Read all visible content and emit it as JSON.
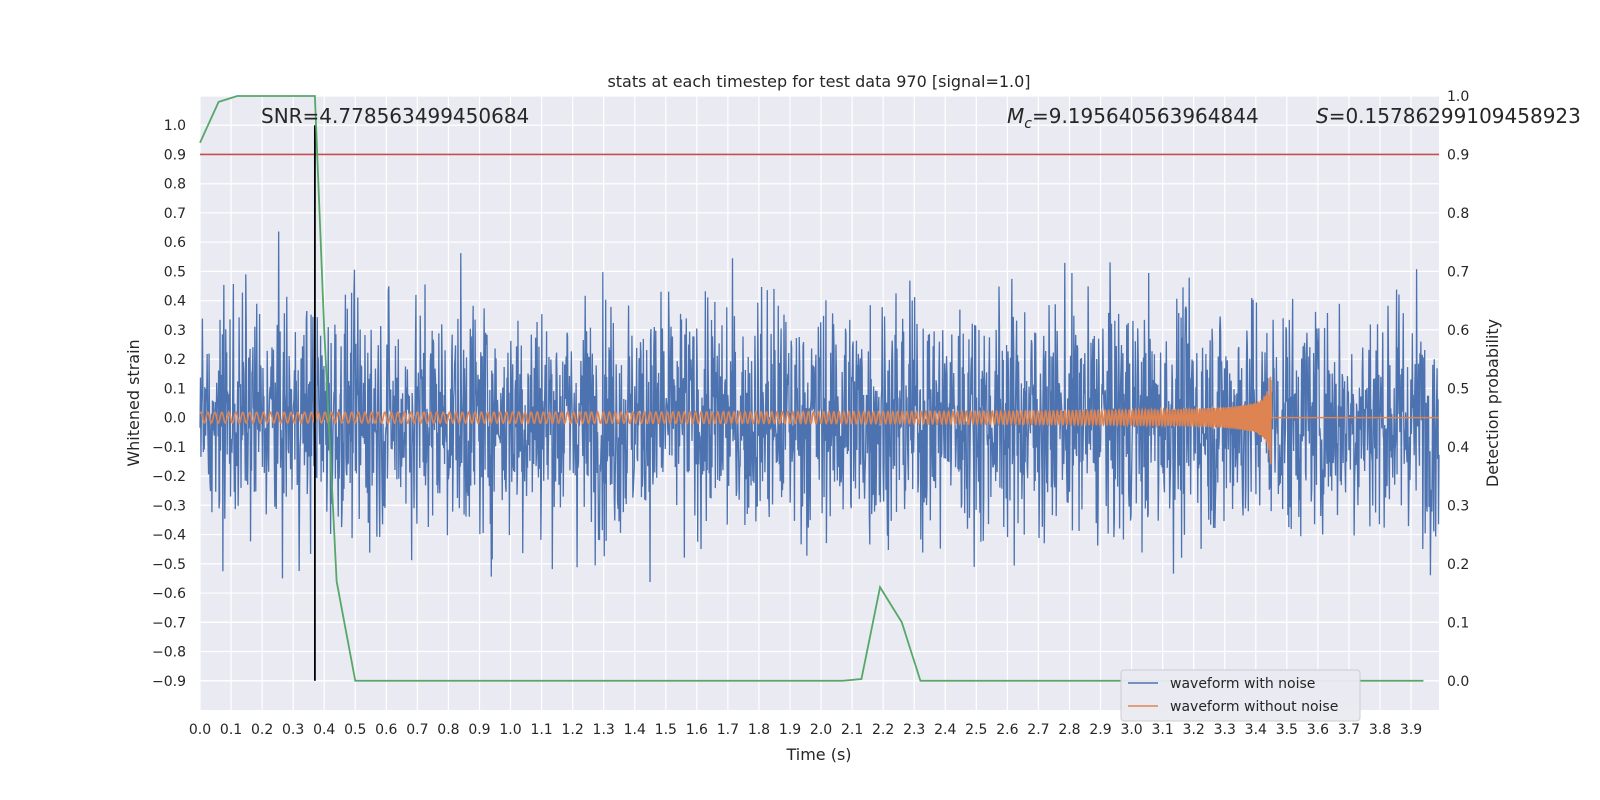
{
  "chart_data": {
    "type": "line",
    "title": "stats at each timestep for test data 970 [signal=1.0]",
    "xlabel": "Time (s)",
    "ylabel_left": "Whitened strain",
    "ylabel_right": "Detection probability",
    "xlim": [
      0.0,
      3.99
    ],
    "ylim_left": [
      -1.0,
      1.1
    ],
    "ylim_right": [
      -0.05,
      1.0
    ],
    "x_ticks": [
      "0.0",
      "0.1",
      "0.2",
      "0.3",
      "0.4",
      "0.5",
      "0.6",
      "0.7",
      "0.8",
      "0.9",
      "1.0",
      "1.1",
      "1.2",
      "1.3",
      "1.4",
      "1.5",
      "1.6",
      "1.7",
      "1.8",
      "1.9",
      "2.0",
      "2.1",
      "2.2",
      "2.3",
      "2.4",
      "2.5",
      "2.6",
      "2.7",
      "2.8",
      "2.9",
      "3.0",
      "3.1",
      "3.2",
      "3.3",
      "3.4",
      "3.5",
      "3.6",
      "3.7",
      "3.8",
      "3.9"
    ],
    "y_ticks_left": [
      "1.0",
      "0.9",
      "0.8",
      "0.7",
      "0.6",
      "0.5",
      "0.4",
      "0.3",
      "0.2",
      "0.1",
      "0.0",
      "−0.1",
      "−0.2",
      "−0.3",
      "−0.4",
      "−0.5",
      "−0.6",
      "−0.7",
      "−0.8",
      "−0.9"
    ],
    "y_ticks_right": [
      "1.0",
      "0.9",
      "0.8",
      "0.7",
      "0.6",
      "0.5",
      "0.4",
      "0.3",
      "0.2",
      "0.1",
      "0.0"
    ],
    "annotations": {
      "snr": "SNR=4.778563499450684",
      "mc_symbol": "M",
      "mc_sub": "c",
      "mc_value": "=9.195640563964844",
      "s_symbol": "S",
      "s_value": "=0.15786299109458923"
    },
    "series": [
      {
        "name": "waveform with noise",
        "axis": "left",
        "color": "#4c72b0",
        "description_range": [
          -0.9,
          1.0
        ]
      },
      {
        "name": "waveform without noise",
        "axis": "left",
        "color": "#dd8452",
        "chirp_end_time": 3.45,
        "peak_amplitude": 0.2
      },
      {
        "name": "",
        "axis": "right",
        "color": "#55a868",
        "x": [
          0.0,
          0.06,
          0.12,
          0.2,
          0.3,
          0.37,
          0.4,
          0.44,
          0.5,
          1.0,
          1.5,
          2.0,
          2.07,
          2.13,
          2.19,
          2.26,
          2.32,
          2.6,
          3.0,
          3.5,
          3.94
        ],
        "y": [
          0.92,
          0.99,
          1.0,
          1.0,
          1.0,
          1.0,
          0.6,
          0.17,
          0.0,
          0.0,
          0.0,
          0.0,
          0.0,
          0.003,
          0.16,
          0.1,
          0.0,
          0.0,
          0.0,
          0.0,
          0.0
        ]
      }
    ],
    "threshold_line": {
      "axis": "right",
      "y": 0.9,
      "color": "#c44e52"
    },
    "vertical_marker": {
      "x": 0.37,
      "y_range_left": [
        -0.9,
        1.0
      ],
      "color": "#000000"
    },
    "legend_position": "lower-right",
    "grid": true
  }
}
